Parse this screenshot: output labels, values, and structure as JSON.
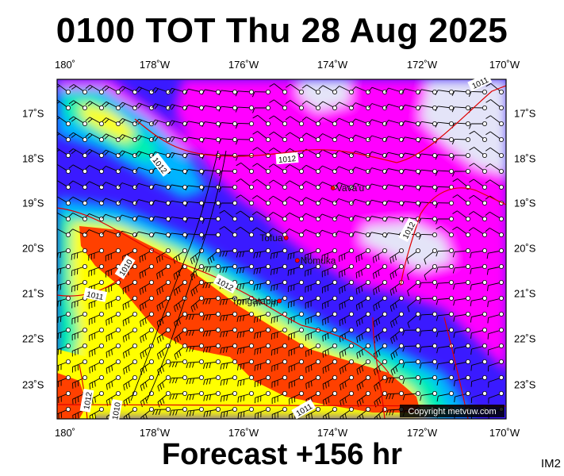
{
  "header": {
    "title": "0100 TOT Thu 28 Aug 2025"
  },
  "footer": {
    "forecast_label": "Forecast +156 hr",
    "image_code": "IM2"
  },
  "map": {
    "lon_ticks_top": [
      "180˚",
      "178˚W",
      "176˚W",
      "174˚W",
      "172˚W",
      "170˚W"
    ],
    "lon_ticks_bottom": [
      "180˚",
      "178˚W",
      "176˚W",
      "174˚W",
      "172˚W",
      "170˚W"
    ],
    "lat_ticks_left": [
      "17˚S",
      "18˚S",
      "19˚S",
      "20˚S",
      "21˚S",
      "22˚S",
      "23˚S"
    ],
    "lat_ticks_right": [
      "17˚S",
      "18˚S",
      "19˚S",
      "20˚S",
      "21˚S",
      "22˚S",
      "23˚S"
    ],
    "places": [
      {
        "name": "Vava'u",
        "lon": -174.0,
        "lat": -18.65
      },
      {
        "name": "Tofua",
        "lon": -175.05,
        "lat": -19.75
      },
      {
        "name": "Nomuka",
        "lon": -174.8,
        "lat": -20.25
      },
      {
        "name": "Tongatapu",
        "lon": -175.2,
        "lat": -21.15
      }
    ],
    "isobar_labels": [
      "1012",
      "1012",
      "1012",
      "1012",
      "1011",
      "1010",
      "1011",
      "1011",
      "1010",
      "1012"
    ],
    "copyright": "Copyright metvuw.com",
    "colors": {
      "calm": "#e4e4f8",
      "light": "#ff00ff",
      "moderate": "#3a1aff",
      "fresh": "#00b4ff",
      "strong": "#00f0b0",
      "gale": "#ffff00",
      "storm": "#ff4000",
      "isobar": "#e00000",
      "coast": "#000000"
    }
  }
}
